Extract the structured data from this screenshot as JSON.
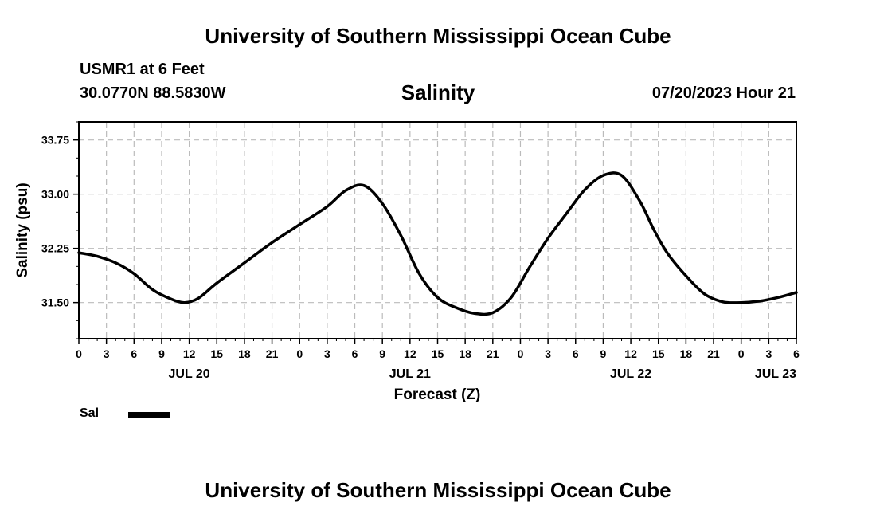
{
  "header": {
    "main_title": "University of Southern Mississippi Ocean Cube",
    "station": "USMR1 at 6 Feet",
    "coords": "30.0770N  88.5830W",
    "chart_title": "Salinity",
    "timestamp": "07/20/2023 Hour 21"
  },
  "legend": {
    "label": "Sal"
  },
  "footer": {
    "title": "University of Southern Mississippi Ocean Cube"
  },
  "colors": {
    "line": "#000000",
    "grid": "#bbbbbb",
    "background": "#ffffff"
  },
  "chart_data": {
    "type": "line",
    "title": "Salinity",
    "xlabel": "Forecast (Z)",
    "ylabel": "Salinity (psu)",
    "xlim": [
      0,
      78
    ],
    "ylim": [
      31.0,
      34.0
    ],
    "grid": true,
    "legend_position": "bottom-left",
    "y_ticks": [
      31.5,
      32.25,
      33.0,
      33.75
    ],
    "y_tick_labels": [
      "31.50",
      "32.25",
      "33.00",
      "33.75"
    ],
    "x_ticks": [
      0,
      3,
      6,
      9,
      12,
      15,
      18,
      21,
      24,
      27,
      30,
      33,
      36,
      39,
      42,
      45,
      48,
      51,
      54,
      57,
      60,
      63,
      66,
      69,
      72,
      75,
      78
    ],
    "x_tick_labels": [
      "0",
      "3",
      "6",
      "9",
      "12",
      "15",
      "18",
      "21",
      "0",
      "3",
      "6",
      "9",
      "12",
      "15",
      "18",
      "21",
      "0",
      "3",
      "6",
      "9",
      "12",
      "15",
      "18",
      "21",
      "0",
      "3",
      "6"
    ],
    "date_labels": [
      {
        "x": 12,
        "text": "JUL 20"
      },
      {
        "x": 36,
        "text": "JUL 21"
      },
      {
        "x": 60,
        "text": "JUL 22"
      },
      {
        "x": 72,
        "text": "JUL 23"
      }
    ],
    "series": [
      {
        "name": "Sal",
        "x": [
          0,
          2,
          4,
          6,
          8,
          10,
          11.5,
          13,
          15,
          18,
          21,
          24,
          27,
          29,
          31,
          33,
          35,
          37,
          39,
          41,
          43,
          45,
          47,
          49,
          51,
          53,
          55,
          57,
          59,
          61,
          62.5,
          64,
          66,
          68,
          70,
          72,
          74,
          76,
          78
        ],
        "y": [
          32.19,
          32.14,
          32.05,
          31.9,
          31.68,
          31.55,
          31.5,
          31.56,
          31.77,
          32.05,
          32.33,
          32.58,
          32.83,
          33.05,
          33.12,
          32.87,
          32.43,
          31.9,
          31.57,
          31.43,
          31.35,
          31.36,
          31.57,
          31.99,
          32.39,
          32.73,
          33.06,
          33.26,
          33.26,
          32.9,
          32.51,
          32.18,
          31.87,
          31.62,
          31.51,
          31.5,
          31.52,
          31.57,
          31.64
        ]
      }
    ]
  }
}
